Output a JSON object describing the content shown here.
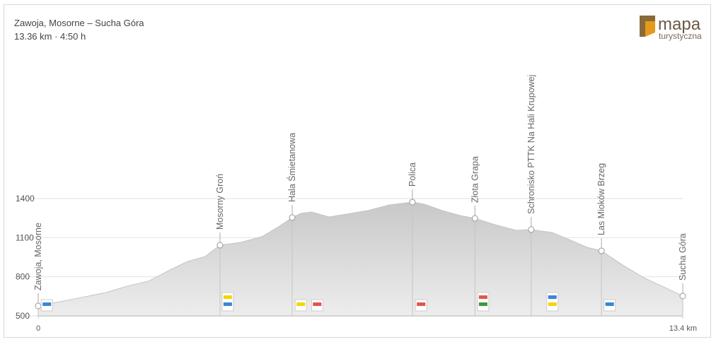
{
  "chart_data": {
    "type": "area",
    "title": "Zawoja, Mosorne – Sucha Góra",
    "subtitle": "13.36 km · 4:50 h",
    "brand": {
      "name": "mapa",
      "tagline": "turystyczna"
    },
    "color": "#d2d2d2",
    "x": [
      0,
      0.68,
      1.41,
      1.85,
      2.29,
      2.74,
      3.1,
      3.47,
      3.78,
      4.21,
      4.65,
      5.02,
      5.28,
      5.46,
      5.68,
      6.05,
      6.41,
      6.85,
      7.3,
      7.78,
      8.03,
      8.4,
      8.77,
      9.08,
      9.5,
      9.94,
      10.25,
      10.68,
      10.97,
      11.41,
      11.71,
      12.15,
      12.59,
      13.03,
      13.4
    ],
    "values": [
      576,
      625,
      679,
      728,
      766,
      852,
      917,
      955,
      1042,
      1064,
      1107,
      1189,
      1254,
      1286,
      1297,
      1259,
      1281,
      1308,
      1351,
      1373,
      1357,
      1308,
      1270,
      1248,
      1199,
      1156,
      1162,
      1140,
      1096,
      1026,
      999,
      890,
      793,
      717,
      652
    ],
    "waypoints": [
      {
        "name": "Zawoja, Mosorne",
        "km": 0,
        "elevation": 576
      },
      {
        "name": "Mosorny Groń",
        "km": 3.78,
        "elevation": 1042
      },
      {
        "name": "Hala Śmietanowa",
        "km": 5.28,
        "elevation": 1254
      },
      {
        "name": "Policа",
        "km": 7.78,
        "elevation": 1373
      },
      {
        "name": "Złota Grapa",
        "km": 9.08,
        "elevation": 1248
      },
      {
        "name": "Schronisko PTTK Na Hali Krupowej",
        "km": 10.25,
        "elevation": 1162
      },
      {
        "name": "Las Mioków Brzeg",
        "km": 11.71,
        "elevation": 999
      },
      {
        "name": "Sucha Góra",
        "km": 13.4,
        "elevation": 652
      }
    ],
    "markers": [
      {
        "km": 0.18,
        "colors": [
          "#3a86d8"
        ]
      },
      {
        "km": 3.94,
        "colors": [
          "#f2d600",
          "#3a86d8"
        ]
      },
      {
        "km": 5.46,
        "colors": [
          "#f2d600"
        ]
      },
      {
        "km": 5.8,
        "colors": [
          "#e0574a"
        ]
      },
      {
        "km": 7.96,
        "colors": [
          "#e0574a"
        ]
      },
      {
        "km": 9.25,
        "colors": [
          "#e0574a",
          "#3b9b3b"
        ]
      },
      {
        "km": 10.69,
        "colors": [
          "#3a86d8",
          "#f2d600"
        ]
      },
      {
        "km": 11.88,
        "colors": [
          "#3a86d8"
        ]
      }
    ],
    "xlim": [
      0,
      13.4
    ],
    "xticks": [
      0,
      {
        "value": 13.4,
        "label": "13.4 km"
      }
    ],
    "ylim": [
      500,
      1400
    ],
    "yticks": [
      500,
      800,
      1100,
      1400
    ],
    "grid": true
  }
}
